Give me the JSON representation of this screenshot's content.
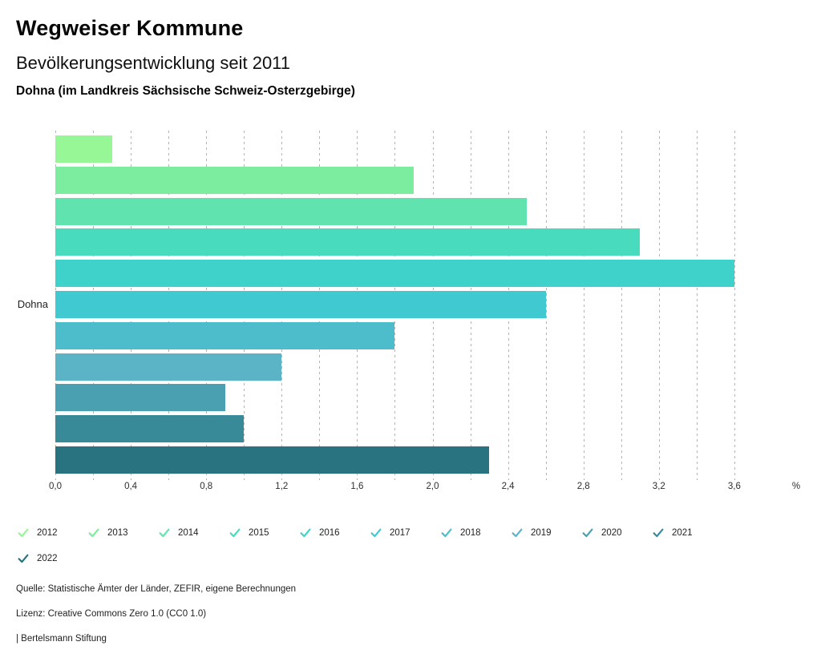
{
  "header": {
    "title": "Wegweiser Kommune",
    "subtitle": "Bevölkerungsentwicklung seit 2011",
    "region": "Dohna (im Landkreis Sächsische Schweiz-Osterzgebirge)"
  },
  "chart_data": {
    "type": "bar",
    "orientation": "horizontal",
    "group_label": "Dohna",
    "unit": "%",
    "categories": [
      "2012",
      "2013",
      "2014",
      "2015",
      "2016",
      "2017",
      "2018",
      "2019",
      "2020",
      "2021",
      "2022"
    ],
    "values": [
      0.3,
      1.9,
      2.5,
      3.1,
      3.6,
      2.6,
      1.8,
      1.2,
      0.9,
      1.0,
      2.3
    ],
    "colors": [
      "#97F695",
      "#7CEC9E",
      "#60E3AE",
      "#49DBBE",
      "#3ED2CA",
      "#40C9D0",
      "#4DBCCB",
      "#5AB4C5",
      "#4AA0B0",
      "#388A99",
      "#297380"
    ],
    "xlim": [
      0,
      4.0
    ],
    "grid": true,
    "grid_max": 3.6,
    "gridline_step": 0.2,
    "x_tick_labels": [
      "0,0",
      "0,4",
      "0,8",
      "1,2",
      "1,6",
      "2,0",
      "2,4",
      "2,8",
      "3,2",
      "3,6"
    ],
    "x_tick_values": [
      0,
      0.4,
      0.8,
      1.2,
      1.6,
      2.0,
      2.4,
      2.8,
      3.2,
      3.6
    ],
    "legend_position": "bottom-left"
  },
  "footer": {
    "source": "Quelle: Statistische Ämter der Länder, ZEFIR, eigene Berechnungen",
    "license": "Lizenz: Creative Commons Zero 1.0 (CC0 1.0)",
    "attribution": "| Bertelsmann Stiftung"
  }
}
